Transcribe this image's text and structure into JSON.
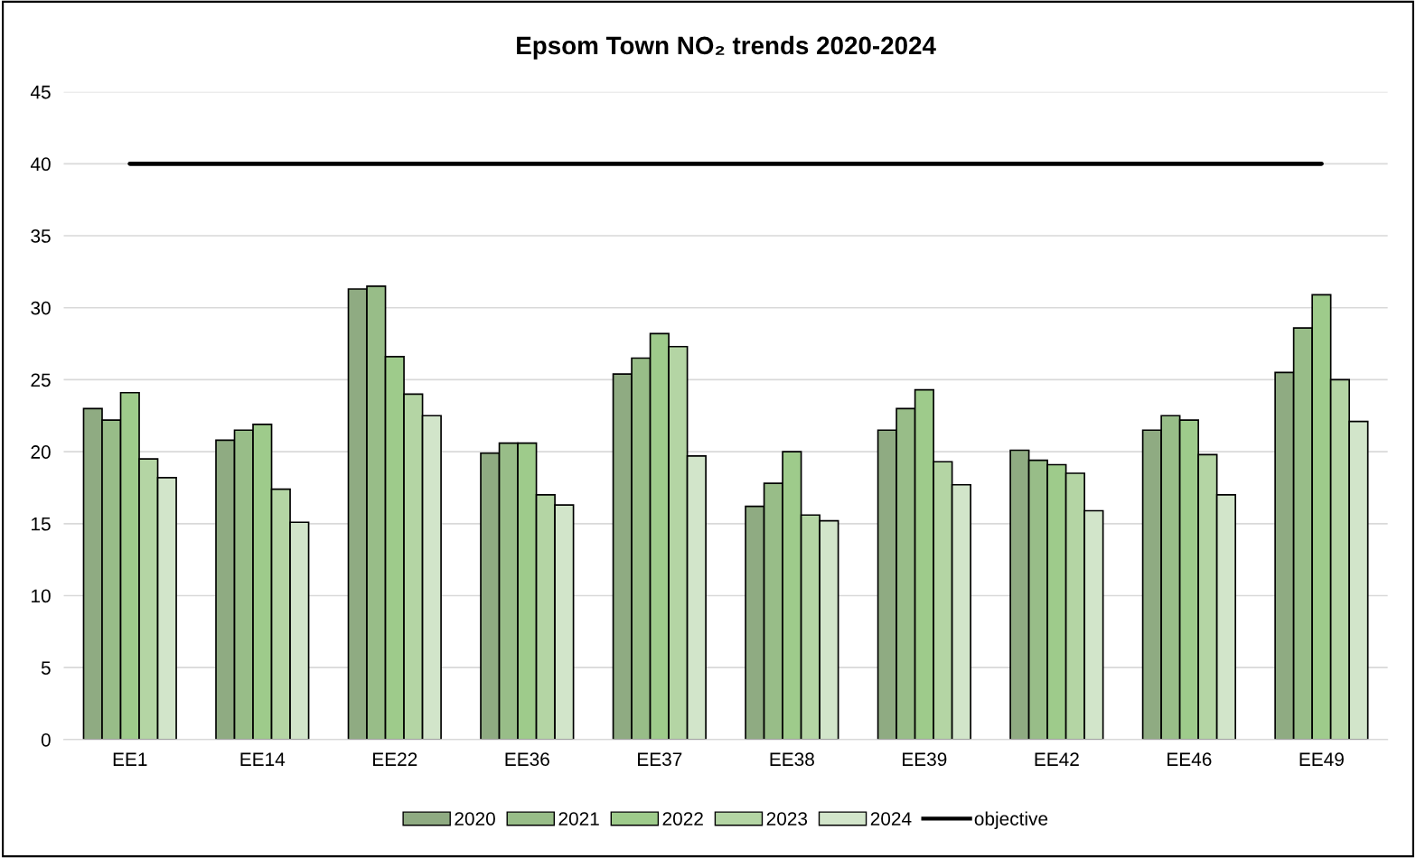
{
  "chart_data": {
    "type": "bar",
    "title": "Epsom Town NO₂ trends 2020-2024",
    "categories": [
      "EE1",
      "EE14",
      "EE22",
      "EE36",
      "EE37",
      "EE38",
      "EE39",
      "EE42",
      "EE46",
      "EE49"
    ],
    "series": [
      {
        "name": "2020",
        "color": "#8fab82",
        "values": [
          23.0,
          20.8,
          31.3,
          19.9,
          25.4,
          16.2,
          21.5,
          20.1,
          21.5,
          25.5
        ]
      },
      {
        "name": "2021",
        "color": "#98bd88",
        "values": [
          22.2,
          21.5,
          31.5,
          20.6,
          26.5,
          17.8,
          23.0,
          19.4,
          22.5,
          28.6
        ]
      },
      {
        "name": "2022",
        "color": "#9ecb8b",
        "values": [
          24.1,
          21.9,
          26.6,
          20.6,
          28.2,
          20.0,
          24.3,
          19.1,
          22.2,
          30.9
        ]
      },
      {
        "name": "2023",
        "color": "#b4d5a4",
        "values": [
          19.5,
          17.4,
          24.0,
          17.0,
          27.3,
          15.6,
          19.3,
          18.5,
          19.8,
          25.0
        ]
      },
      {
        "name": "2024",
        "color": "#d2e5ca",
        "values": [
          18.2,
          15.1,
          22.5,
          16.3,
          19.7,
          15.2,
          17.7,
          15.9,
          17.0,
          22.1
        ]
      },
      {
        "name": "objective",
        "type": "line",
        "color": "#000000",
        "values": [
          40,
          40,
          40,
          40,
          40,
          40,
          40,
          40,
          40,
          40
        ]
      }
    ],
    "ylim": [
      0,
      45
    ],
    "yticks": [
      0,
      5,
      10,
      15,
      20,
      25,
      30,
      35,
      40,
      45
    ],
    "grid": "y",
    "legend": "bottom"
  }
}
